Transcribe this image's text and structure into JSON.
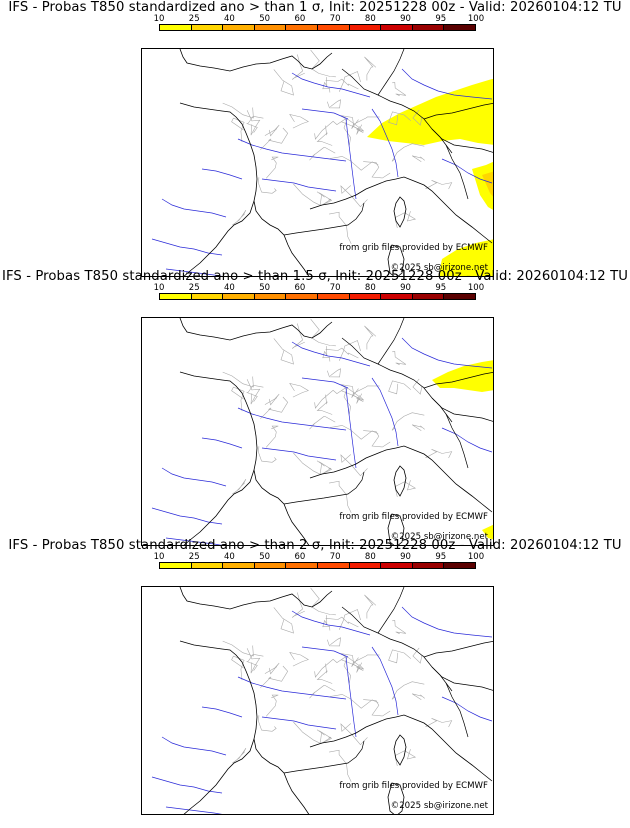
{
  "scale": {
    "ticks": [
      "10",
      "25",
      "40",
      "50",
      "60",
      "70",
      "80",
      "90",
      "95",
      "100"
    ],
    "colors": [
      "#ffff00",
      "#ffd600",
      "#ffb000",
      "#ff9000",
      "#ff7000",
      "#ff4a00",
      "#f21c00",
      "#cc0000",
      "#990000",
      "#5a0000"
    ]
  },
  "credits": {
    "source": "from grib files provided by ECMWF",
    "copyright": "©2025 sb@irizone.net"
  },
  "panels": [
    {
      "title": "IFS - Probas T850  standardized ano > than 1 σ, Init: 20251228 00z - Valid: 20260104:12 TU",
      "yellow_level": "high"
    },
    {
      "title": "IFS - Probas T850  standardized ano > than 1.5 σ, Init: 20251228 00z - Valid: 20260104:12 TU",
      "yellow_level": "medium"
    },
    {
      "title": "IFS - Probas T850  standardized ano > than 2 σ, Init: 20251228 00z - Valid: 20260104:12 TU",
      "yellow_level": "none"
    }
  ]
}
